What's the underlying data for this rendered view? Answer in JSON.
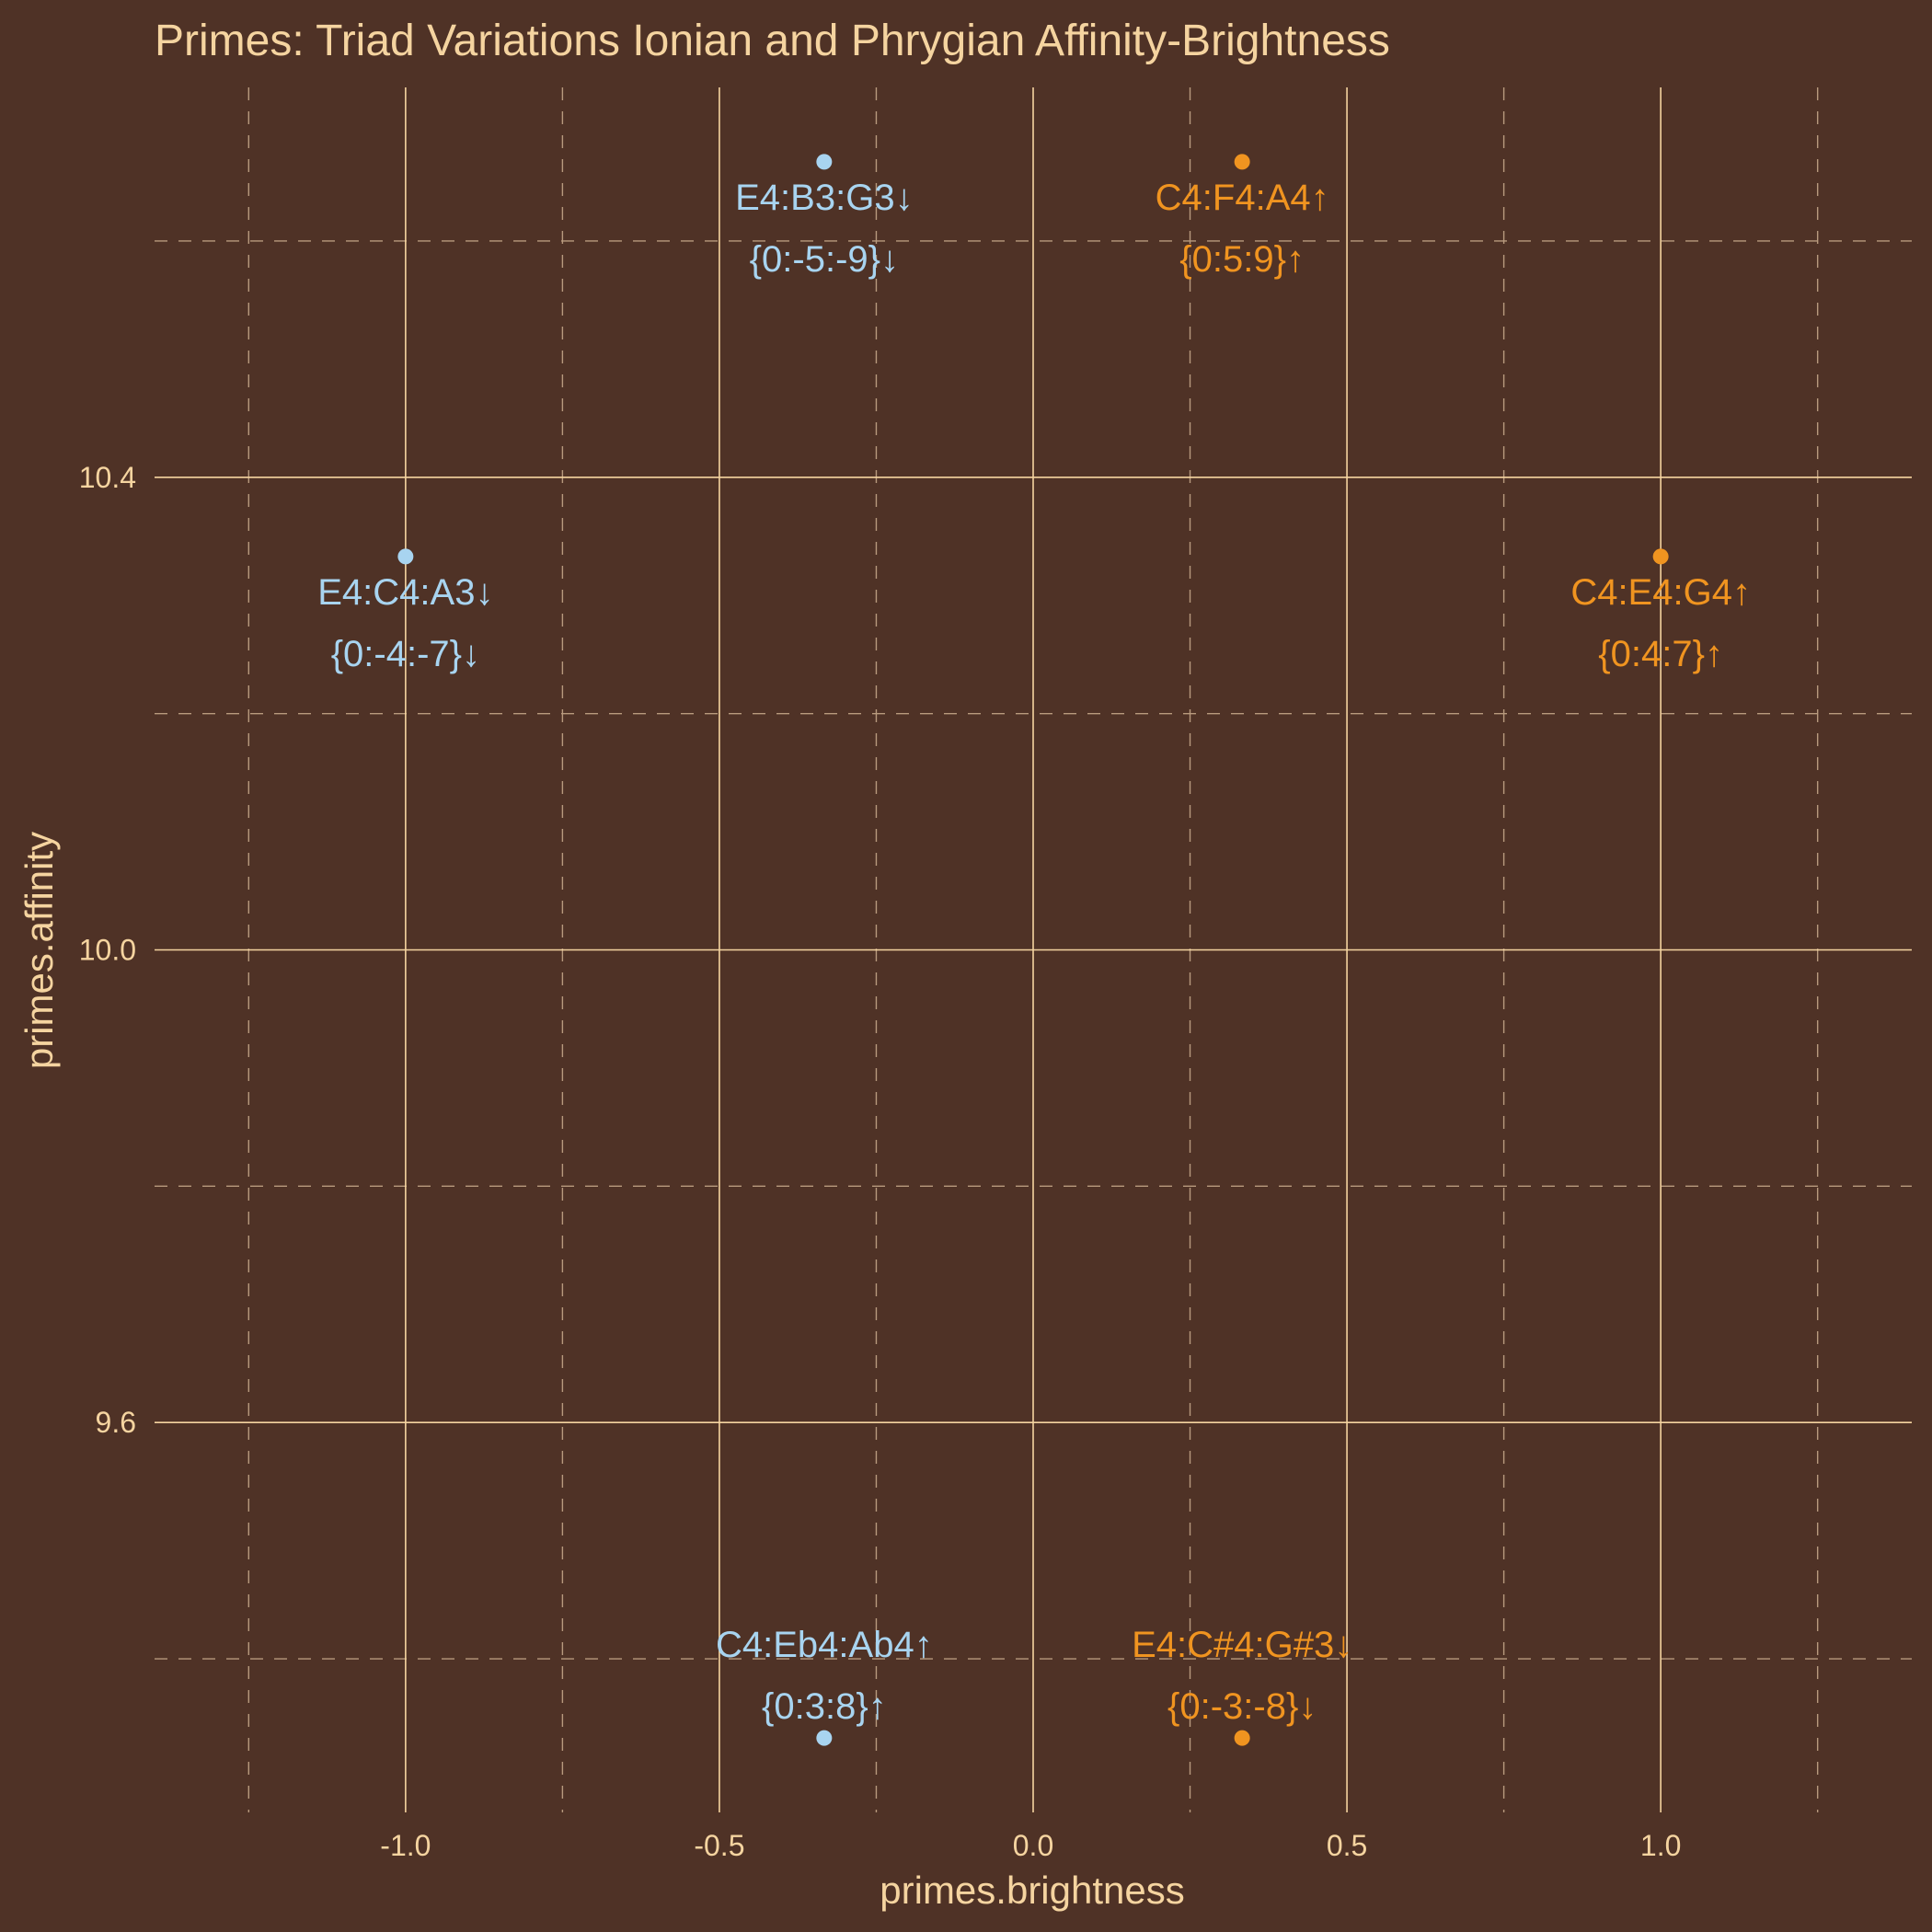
{
  "chart_data": {
    "type": "scatter",
    "title": "Primes: Triad Variations Ionian and Phrygian Affinity-Brightness",
    "xlabel": "primes.brightness",
    "ylabel": "primes.affinity",
    "xlim": [
      -1.4,
      1.4
    ],
    "ylim": [
      9.27,
      10.73
    ],
    "x_ticks": [
      "-1.0",
      "-0.5",
      "0.0",
      "0.5",
      "1.0"
    ],
    "y_ticks": [
      "9.6",
      "10.0",
      "10.4"
    ],
    "grid": true,
    "background_color": "#4f3226",
    "text_color": "#f5d4a0",
    "series": [
      {
        "color": "#a8d4f0",
        "points": [
          {
            "x": -0.333,
            "y": 10.667,
            "label_1": "E4:B3:G3↓",
            "label_2": "{0:-5:-9}↓",
            "label_pos": "below"
          },
          {
            "x": -1.0,
            "y": 10.333,
            "label_1": "E4:C4:A3↓",
            "label_2": "{0:-4:-7}↓",
            "label_pos": "below"
          },
          {
            "x": -0.333,
            "y": 9.333,
            "label_1": "C4:Eb4:Ab4↑",
            "label_2": "{0:3:8}↑",
            "label_pos": "above"
          }
        ]
      },
      {
        "color": "#f09420",
        "points": [
          {
            "x": 0.333,
            "y": 10.667,
            "label_1": "C4:F4:A4↑",
            "label_2": "{0:5:9}↑",
            "label_pos": "below"
          },
          {
            "x": 1.0,
            "y": 10.333,
            "label_1": "C4:E4:G4↑",
            "label_2": "{0:4:7}↑",
            "label_pos": "below"
          },
          {
            "x": 0.333,
            "y": 9.333,
            "label_1": "E4:C#4:G#3↓",
            "label_2": "{0:-3:-8}↓",
            "label_pos": "above"
          }
        ]
      }
    ]
  }
}
